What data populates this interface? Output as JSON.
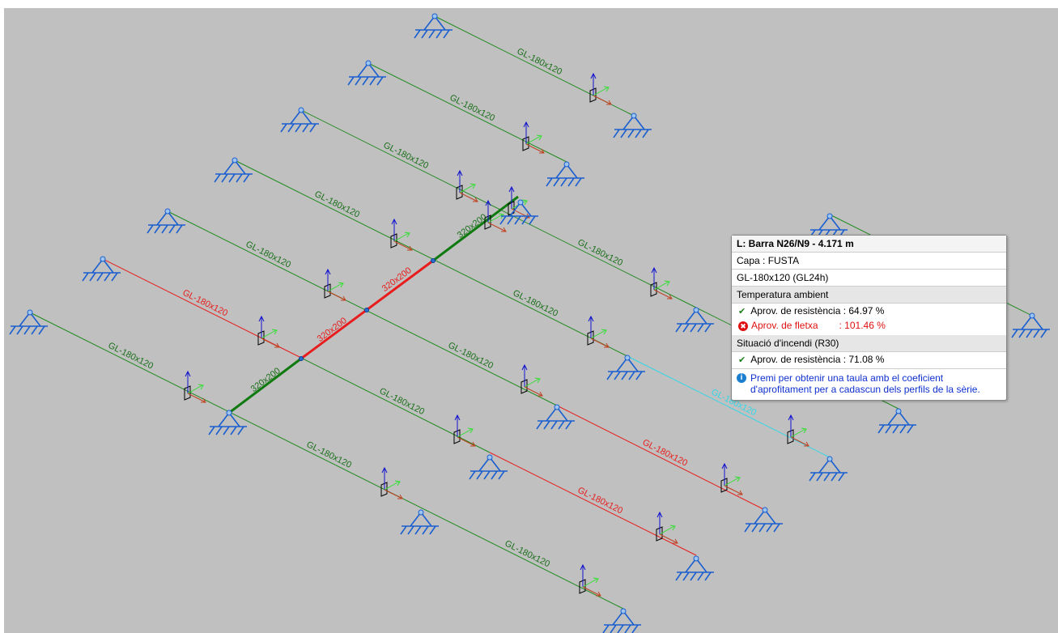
{
  "member_labels": [
    "GL-180x120",
    "GL-180x120",
    "GL-180x120",
    "GL-180x120",
    "GL-180x120",
    "GL-180x120",
    "GL-180x120",
    "GL-180x120",
    "GL-180x120",
    "GL-180x120",
    "GL-180x120",
    "GL-180x120",
    "GL-180x120",
    "GL-180x120",
    "GL-180x120",
    "GL-180x120"
  ],
  "main_labels": [
    "320x200",
    "320x200",
    "320x200",
    "320x200"
  ],
  "tooltip": {
    "title": "L: Barra N26/N9 - 4.171 m",
    "layer": "Capa : FUSTA",
    "section": "GL-180x120 (GL24h)",
    "ambient_heading": "Temperatura ambient",
    "ambient_resistance": "Aprov. de resistència : 64.97 %",
    "ambient_deflection_label": "Aprov. de fletxa",
    "ambient_deflection_value": ": 101.46 %",
    "fire_heading": "Situació d'incendi (R30)",
    "fire_resistance": "Aprov. de resistència : 71.08 %",
    "info": "Premi per obtenir una taula amb el coeficient d'aprofitament per a cadascun dels perfils de la sèrie."
  }
}
